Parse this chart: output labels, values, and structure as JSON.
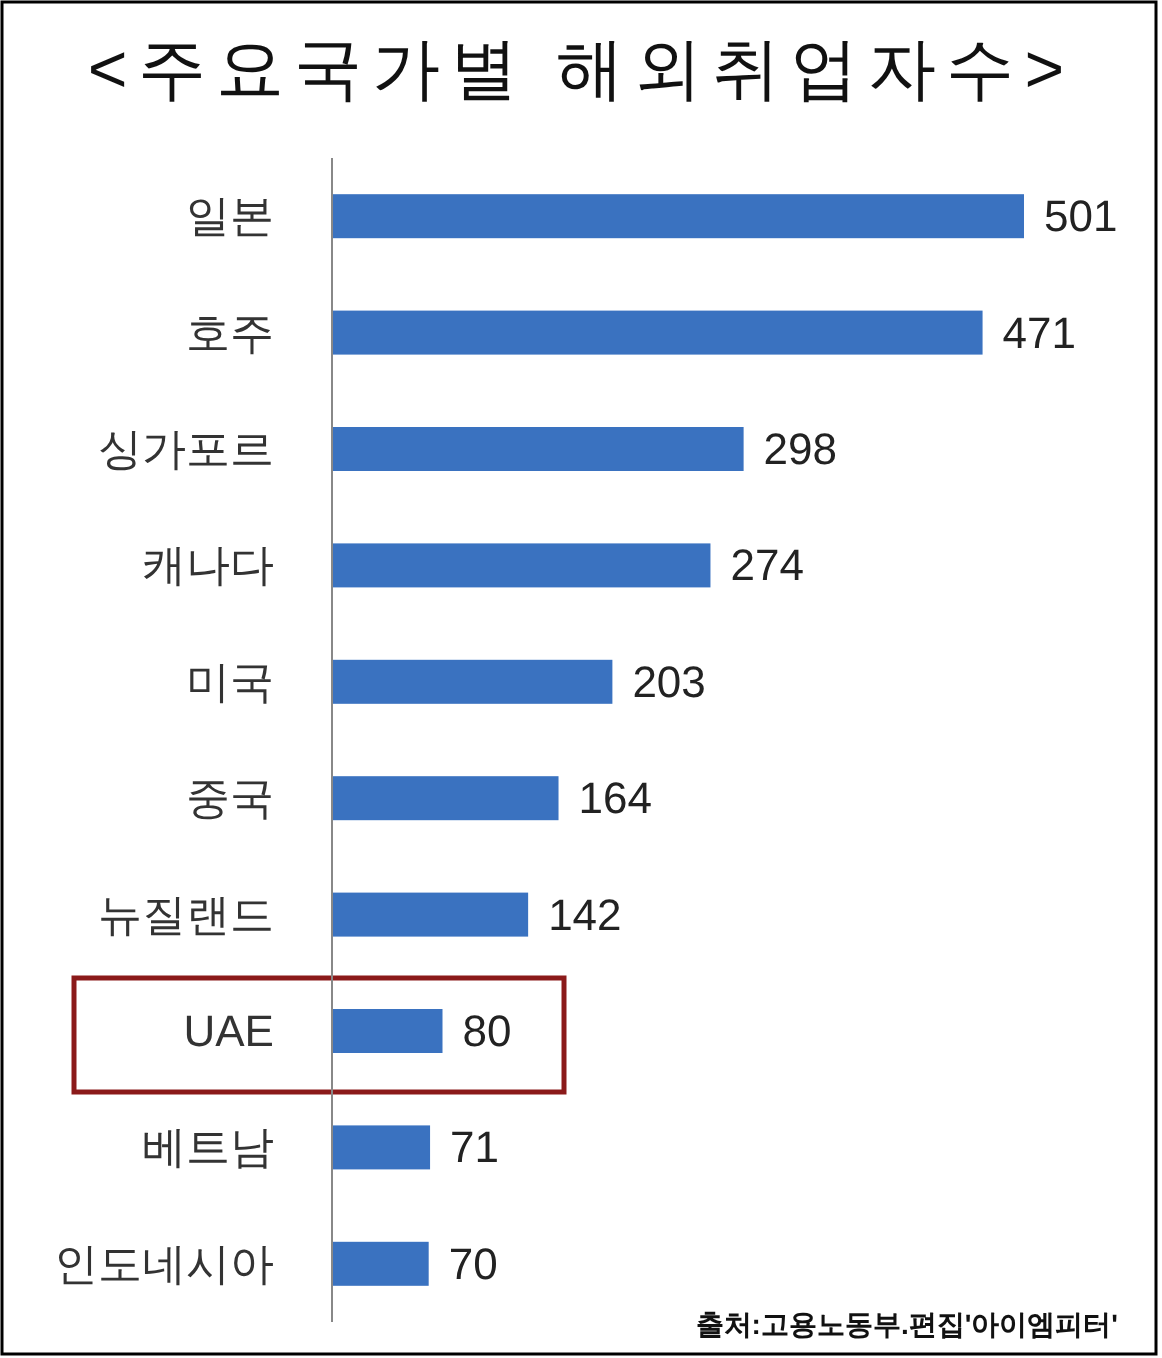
{
  "chart_data": {
    "type": "bar",
    "orientation": "horizontal",
    "title": "<주요국가별 해외취업자수>",
    "categories": [
      "일본",
      "호주",
      "싱가포르",
      "캐나다",
      "미국",
      "중국",
      "뉴질랜드",
      "UAE",
      "베트남",
      "인도네시아"
    ],
    "values": [
      501,
      471,
      298,
      274,
      203,
      164,
      142,
      80,
      71,
      70
    ],
    "color": "#3a72c0",
    "data_labels": true,
    "annotations": [
      "출처:고용노동부.편집'아이엠피터'"
    ]
  }
}
